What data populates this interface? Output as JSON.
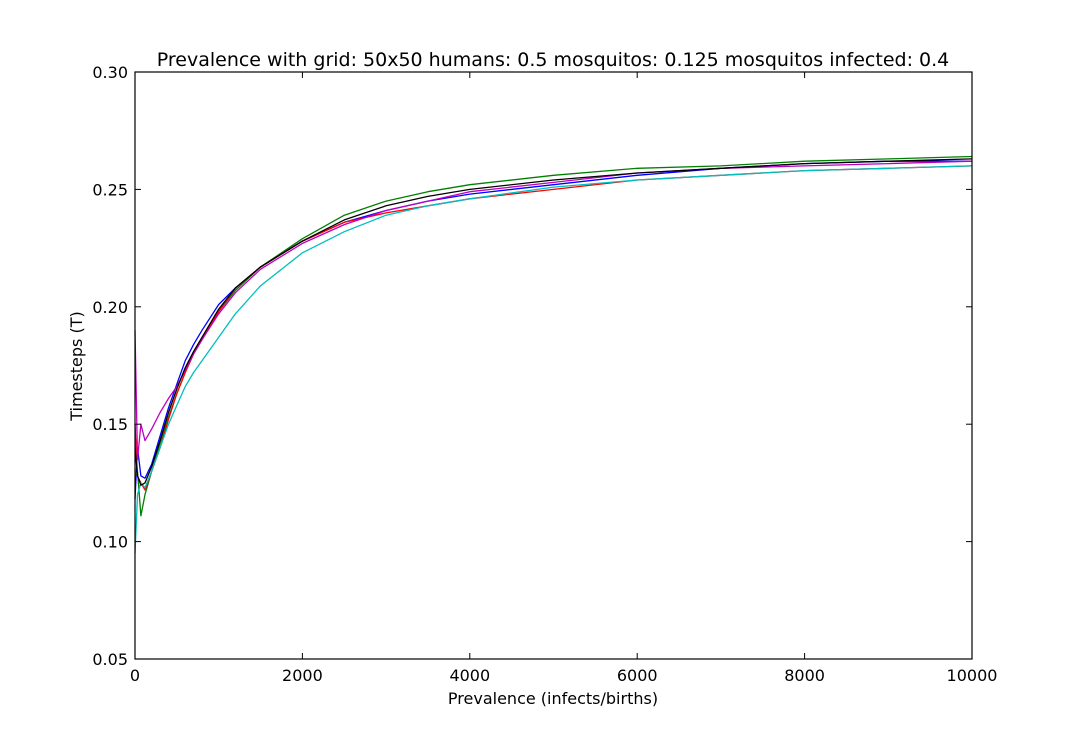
{
  "chart_data": {
    "type": "line",
    "title": "Prevalence with grid: 50x50 humans: 0.5 mosquitos: 0.125 mosquitos infected: 0.4",
    "xlabel": "Prevalence (infects/births)",
    "ylabel": "Timesteps (T)",
    "xlim": [
      0,
      10000
    ],
    "ylim": [
      0.05,
      0.3
    ],
    "xticks": [
      0,
      2000,
      4000,
      6000,
      8000,
      10000
    ],
    "yticks": [
      0.05,
      0.1,
      0.15,
      0.2,
      0.25,
      0.3
    ],
    "xtick_labels": [
      "0",
      "2000",
      "4000",
      "6000",
      "8000",
      "10000"
    ],
    "ytick_labels": [
      "0.05",
      "0.10",
      "0.15",
      "0.20",
      "0.25",
      "0.30"
    ],
    "grid": false,
    "series": [
      {
        "color": "#0000ff",
        "points": [
          [
            0,
            0.118
          ],
          [
            30,
            0.14
          ],
          [
            70,
            0.128
          ],
          [
            120,
            0.127
          ],
          [
            200,
            0.133
          ],
          [
            300,
            0.145
          ],
          [
            400,
            0.157
          ],
          [
            500,
            0.167
          ],
          [
            600,
            0.177
          ],
          [
            700,
            0.184
          ],
          [
            800,
            0.19
          ],
          [
            1000,
            0.201
          ],
          [
            1200,
            0.208
          ],
          [
            1500,
            0.217
          ],
          [
            2000,
            0.228
          ],
          [
            2500,
            0.236
          ],
          [
            3000,
            0.241
          ],
          [
            3500,
            0.245
          ],
          [
            4000,
            0.248
          ],
          [
            5000,
            0.252
          ],
          [
            6000,
            0.256
          ],
          [
            7000,
            0.259
          ],
          [
            8000,
            0.261
          ],
          [
            9000,
            0.262
          ],
          [
            10000,
            0.262
          ]
        ]
      },
      {
        "color": "#008000",
        "points": [
          [
            0,
            0.128
          ],
          [
            30,
            0.13
          ],
          [
            70,
            0.111
          ],
          [
            120,
            0.12
          ],
          [
            200,
            0.13
          ],
          [
            300,
            0.142
          ],
          [
            400,
            0.153
          ],
          [
            500,
            0.163
          ],
          [
            600,
            0.172
          ],
          [
            700,
            0.18
          ],
          [
            800,
            0.186
          ],
          [
            1000,
            0.198
          ],
          [
            1200,
            0.207
          ],
          [
            1500,
            0.217
          ],
          [
            2000,
            0.229
          ],
          [
            2500,
            0.239
          ],
          [
            3000,
            0.245
          ],
          [
            3500,
            0.249
          ],
          [
            4000,
            0.252
          ],
          [
            5000,
            0.256
          ],
          [
            6000,
            0.259
          ],
          [
            7000,
            0.26
          ],
          [
            8000,
            0.262
          ],
          [
            9000,
            0.263
          ],
          [
            10000,
            0.264
          ]
        ]
      },
      {
        "color": "#ff0000",
        "points": [
          [
            0,
            0.15
          ],
          [
            30,
            0.128
          ],
          [
            70,
            0.125
          ],
          [
            120,
            0.122
          ],
          [
            200,
            0.13
          ],
          [
            300,
            0.14
          ],
          [
            400,
            0.152
          ],
          [
            500,
            0.163
          ],
          [
            600,
            0.172
          ],
          [
            700,
            0.18
          ],
          [
            800,
            0.186
          ],
          [
            1000,
            0.198
          ],
          [
            1200,
            0.208
          ],
          [
            1500,
            0.217
          ],
          [
            2000,
            0.228
          ],
          [
            2500,
            0.236
          ],
          [
            3000,
            0.24
          ],
          [
            3500,
            0.243
          ],
          [
            4000,
            0.246
          ],
          [
            5000,
            0.25
          ],
          [
            6000,
            0.254
          ],
          [
            7000,
            0.256
          ],
          [
            8000,
            0.258
          ],
          [
            9000,
            0.259
          ],
          [
            10000,
            0.26
          ]
        ]
      },
      {
        "color": "#00bfbf",
        "points": [
          [
            0,
            0.095
          ],
          [
            30,
            0.12
          ],
          [
            70,
            0.125
          ],
          [
            120,
            0.123
          ],
          [
            200,
            0.13
          ],
          [
            300,
            0.14
          ],
          [
            400,
            0.15
          ],
          [
            500,
            0.158
          ],
          [
            600,
            0.166
          ],
          [
            700,
            0.172
          ],
          [
            800,
            0.177
          ],
          [
            1000,
            0.187
          ],
          [
            1200,
            0.197
          ],
          [
            1500,
            0.209
          ],
          [
            2000,
            0.223
          ],
          [
            2500,
            0.232
          ],
          [
            3000,
            0.239
          ],
          [
            3500,
            0.243
          ],
          [
            4000,
            0.246
          ],
          [
            5000,
            0.251
          ],
          [
            6000,
            0.254
          ],
          [
            7000,
            0.256
          ],
          [
            8000,
            0.258
          ],
          [
            9000,
            0.259
          ],
          [
            10000,
            0.26
          ]
        ]
      },
      {
        "color": "#bf00bf",
        "points": [
          [
            0,
            0.19
          ],
          [
            30,
            0.135
          ],
          [
            70,
            0.15
          ],
          [
            120,
            0.143
          ],
          [
            200,
            0.148
          ],
          [
            300,
            0.155
          ],
          [
            400,
            0.161
          ],
          [
            500,
            0.166
          ],
          [
            600,
            0.173
          ],
          [
            700,
            0.18
          ],
          [
            800,
            0.186
          ],
          [
            1000,
            0.197
          ],
          [
            1200,
            0.206
          ],
          [
            1500,
            0.216
          ],
          [
            2000,
            0.227
          ],
          [
            2500,
            0.235
          ],
          [
            3000,
            0.241
          ],
          [
            3500,
            0.245
          ],
          [
            4000,
            0.249
          ],
          [
            5000,
            0.253
          ],
          [
            6000,
            0.257
          ],
          [
            7000,
            0.259
          ],
          [
            8000,
            0.26
          ],
          [
            9000,
            0.261
          ],
          [
            10000,
            0.262
          ]
        ]
      },
      {
        "color": "#000000",
        "points": [
          [
            0,
            0.14
          ],
          [
            30,
            0.128
          ],
          [
            70,
            0.124
          ],
          [
            120,
            0.125
          ],
          [
            200,
            0.132
          ],
          [
            300,
            0.143
          ],
          [
            400,
            0.155
          ],
          [
            500,
            0.165
          ],
          [
            600,
            0.174
          ],
          [
            700,
            0.181
          ],
          [
            800,
            0.187
          ],
          [
            1000,
            0.199
          ],
          [
            1200,
            0.208
          ],
          [
            1500,
            0.217
          ],
          [
            2000,
            0.228
          ],
          [
            2500,
            0.237
          ],
          [
            3000,
            0.243
          ],
          [
            3500,
            0.247
          ],
          [
            4000,
            0.25
          ],
          [
            5000,
            0.254
          ],
          [
            6000,
            0.257
          ],
          [
            7000,
            0.259
          ],
          [
            8000,
            0.261
          ],
          [
            9000,
            0.262
          ],
          [
            10000,
            0.263
          ]
        ]
      }
    ]
  }
}
